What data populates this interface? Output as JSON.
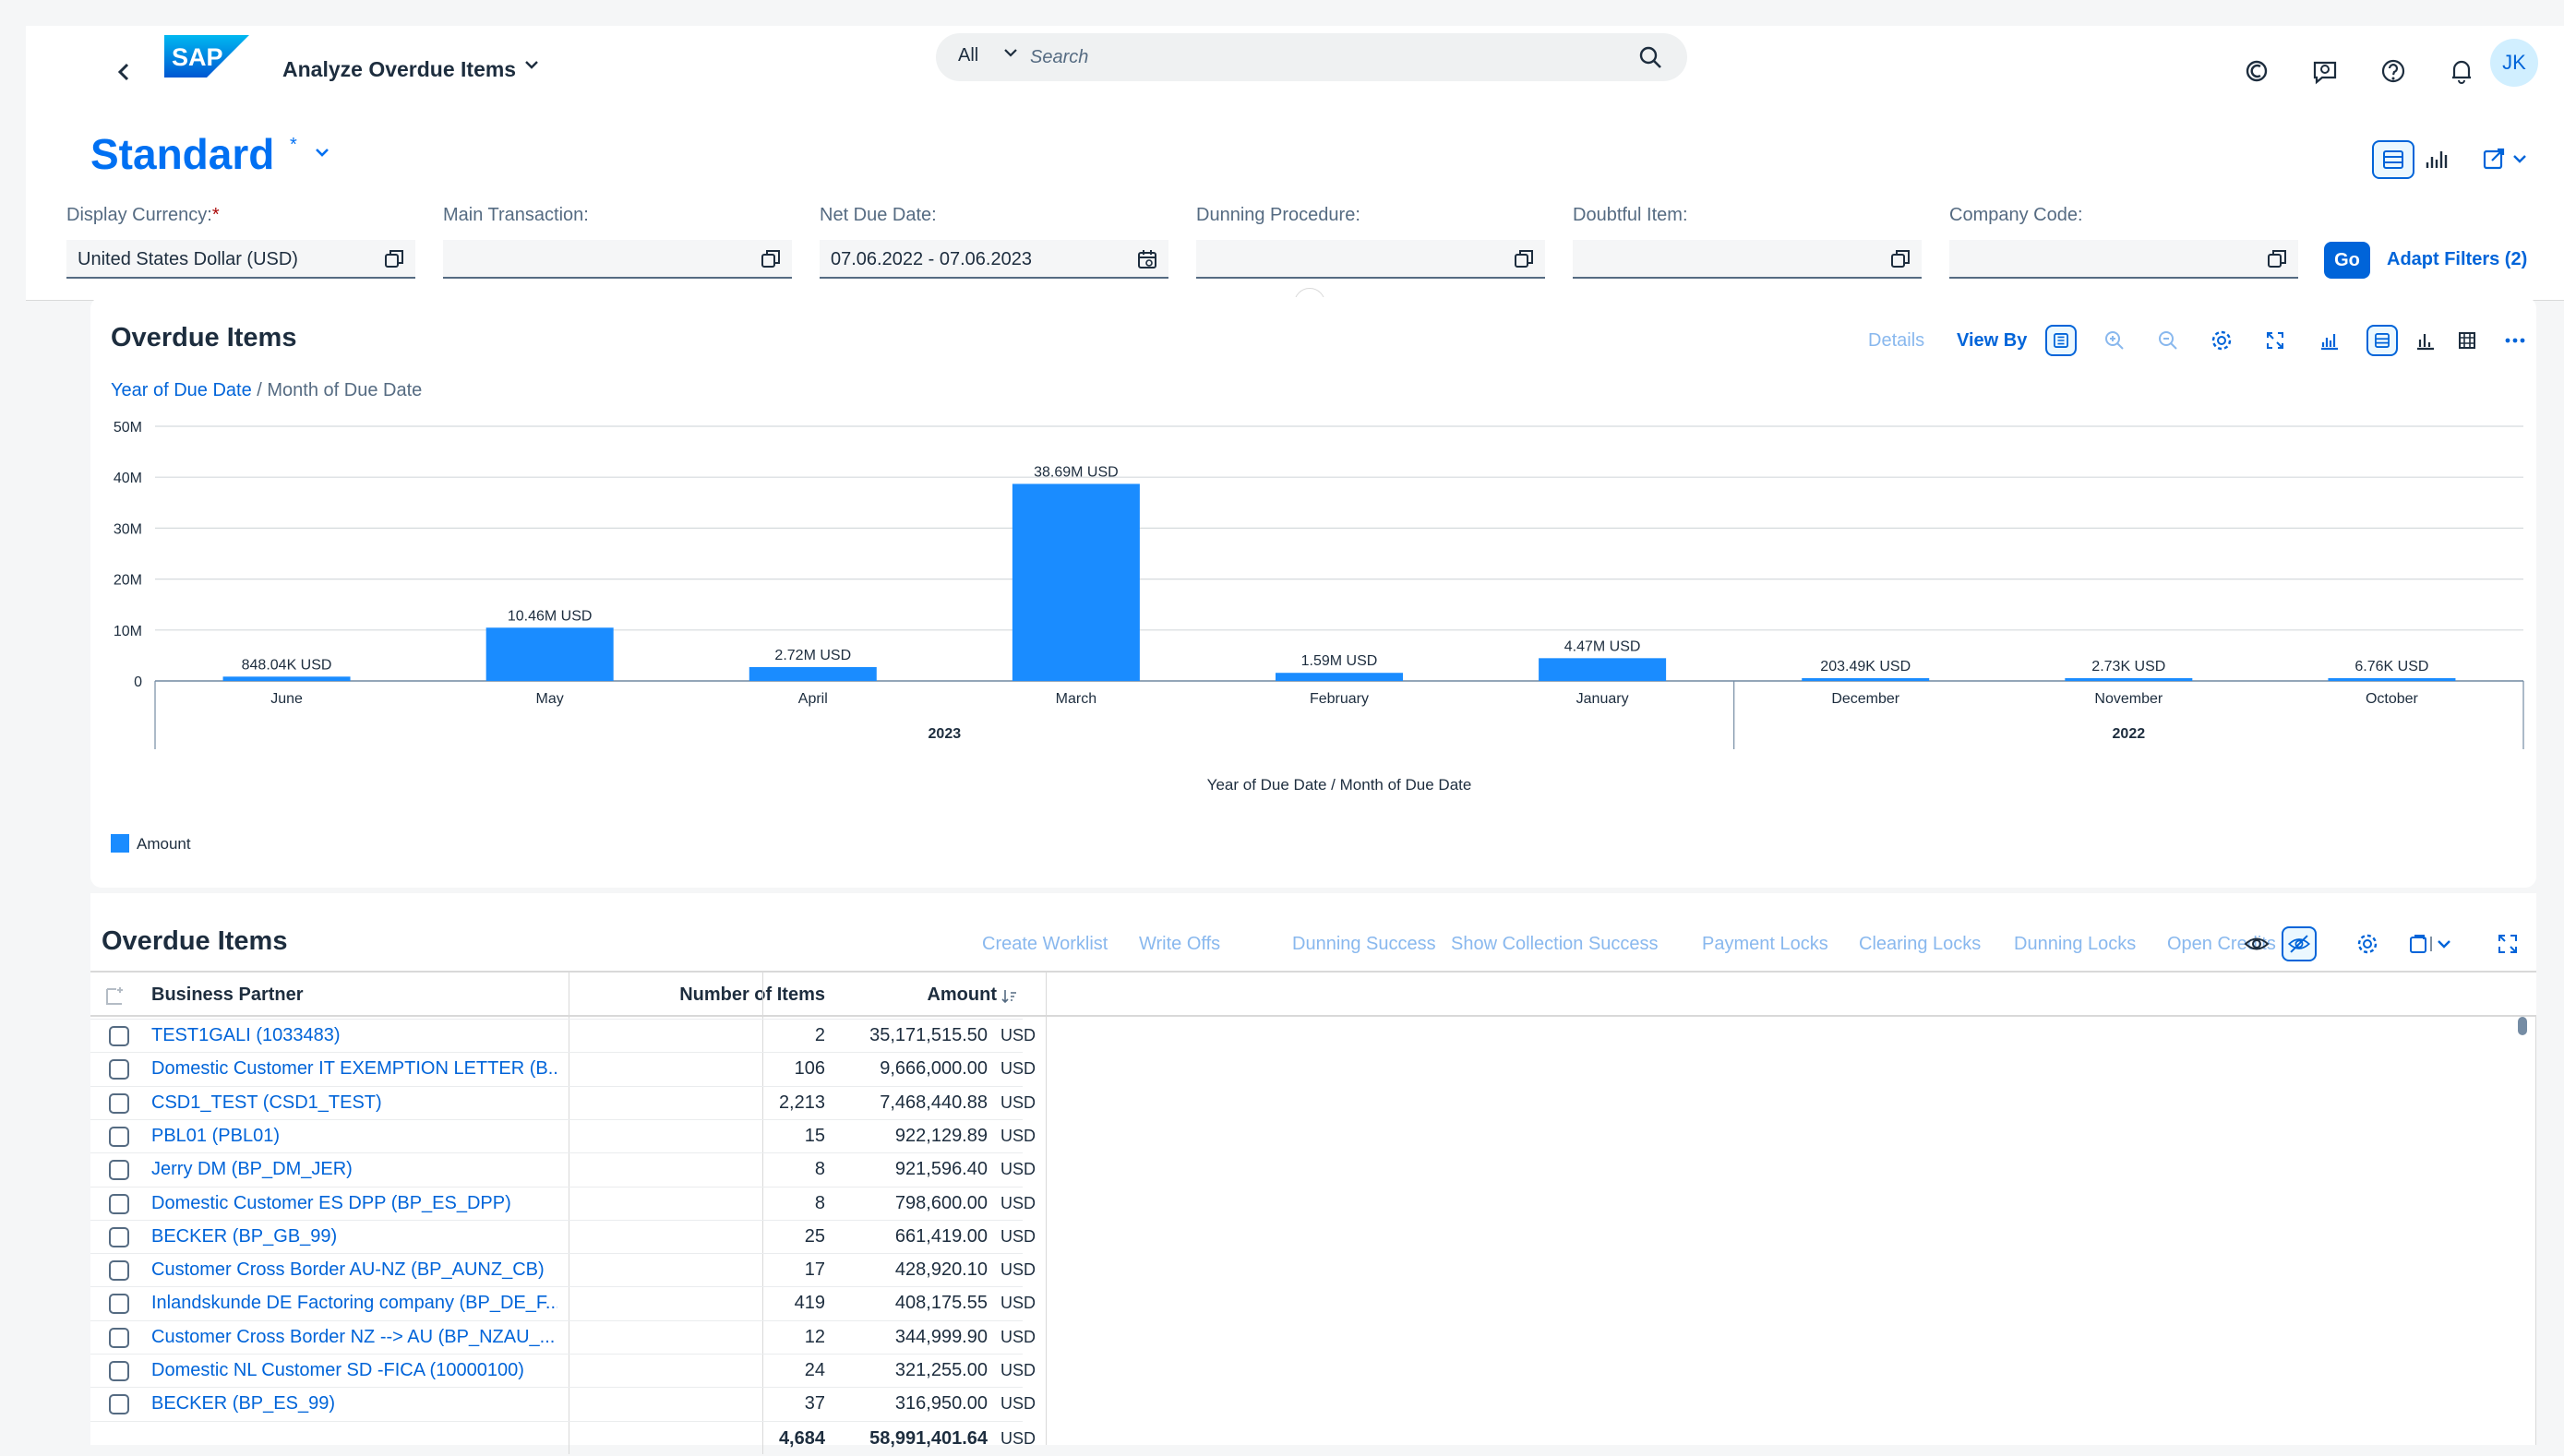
{
  "shell": {
    "app_title": "Analyze Overdue Items",
    "search_scope": "All",
    "search_placeholder": "Search",
    "avatar_initials": "JK"
  },
  "header": {
    "variant": "Standard",
    "variant_modified": "*"
  },
  "filters": [
    {
      "label": "Display Currency:",
      "required": "*",
      "value": "United States Dollar (USD)"
    },
    {
      "label": "Main Transaction:",
      "required": "",
      "value": ""
    },
    {
      "label": "Net Due Date:",
      "required": "",
      "value": "07.06.2022 - 07.06.2023"
    },
    {
      "label": "Dunning Procedure:",
      "required": "",
      "value": ""
    },
    {
      "label": "Doubtful Item:",
      "required": "",
      "value": ""
    },
    {
      "label": "Company Code:",
      "required": "",
      "value": ""
    }
  ],
  "filter_actions": {
    "go": "Go",
    "adapt": "Adapt Filters (2)"
  },
  "chart_card": {
    "title": "Overdue Items",
    "breadcrumb_link": "Year of Due Date",
    "breadcrumb_sep": " / ",
    "breadcrumb_current": "Month of Due Date",
    "details": "Details",
    "view_by": "View By"
  },
  "chart_data": {
    "type": "bar",
    "categories": [
      "June",
      "May",
      "April",
      "March",
      "February",
      "January",
      "December",
      "November",
      "October"
    ],
    "groups": [
      {
        "label": "2023",
        "categories": [
          "June",
          "May",
          "April",
          "March",
          "February",
          "January"
        ]
      },
      {
        "label": "2022",
        "categories": [
          "December",
          "November",
          "October"
        ]
      }
    ],
    "series": [
      {
        "name": "Amount",
        "color": "#1a8cff",
        "values": [
          848040,
          10460000,
          2720000,
          38690000,
          1590000,
          4470000,
          203490,
          2730,
          6760
        ]
      }
    ],
    "data_labels": [
      "848.04K USD",
      "10.46M USD",
      "2.72M USD",
      "38.69M USD",
      "1.59M USD",
      "4.47M USD",
      "203.49K USD",
      "2.73K USD",
      "6.76K USD"
    ],
    "yticks": [
      "0",
      "10M",
      "20M",
      "30M",
      "40M",
      "50M"
    ],
    "ylim": [
      0,
      50000000
    ],
    "xlabel": "Year of Due Date / Month of Due Date",
    "ylabel": "",
    "grid": true,
    "legend": "bottom-left"
  },
  "table": {
    "title": "Overdue Items",
    "actions": [
      "Create Worklist",
      "Write Offs",
      "Dunning Success",
      "Show Collection Success",
      "Payment Locks",
      "Clearing Locks",
      "Dunning Locks",
      "Open Credits"
    ],
    "columns": {
      "bp": "Business Partner",
      "items": "Number of Items",
      "amount": "Amount"
    },
    "rows": [
      {
        "bp": "TEST1GALI (1033483)",
        "items": "2",
        "amount": "35,171,515.50",
        "cur": "USD"
      },
      {
        "bp": "Domestic Customer IT EXEMPTION LETTER (B...",
        "items": "106",
        "amount": "9,666,000.00",
        "cur": "USD"
      },
      {
        "bp": "CSD1_TEST (CSD1_TEST)",
        "items": "2,213",
        "amount": "7,468,440.88",
        "cur": "USD"
      },
      {
        "bp": "PBL01 (PBL01)",
        "items": "15",
        "amount": "922,129.89",
        "cur": "USD"
      },
      {
        "bp": "Jerry DM (BP_DM_JER)",
        "items": "8",
        "amount": "921,596.40",
        "cur": "USD"
      },
      {
        "bp": "Domestic Customer ES DPP (BP_ES_DPP)",
        "items": "8",
        "amount": "798,600.00",
        "cur": "USD"
      },
      {
        "bp": "BECKER (BP_GB_99)",
        "items": "25",
        "amount": "661,419.00",
        "cur": "USD"
      },
      {
        "bp": "Customer Cross Border AU-NZ (BP_AUNZ_CB)",
        "items": "17",
        "amount": "428,920.10",
        "cur": "USD"
      },
      {
        "bp": "Inlandskunde DE Factoring company (BP_DE_F...",
        "items": "419",
        "amount": "408,175.55",
        "cur": "USD"
      },
      {
        "bp": "Customer Cross Border NZ --> AU (BP_NZAU_...",
        "items": "12",
        "amount": "344,999.90",
        "cur": "USD"
      },
      {
        "bp": "Domestic NL Customer SD -FICA (10000100)",
        "items": "24",
        "amount": "321,255.00",
        "cur": "USD"
      },
      {
        "bp": "BECKER (BP_ES_99)",
        "items": "37",
        "amount": "316,950.00",
        "cur": "USD"
      }
    ],
    "totals": {
      "items": "4,684",
      "amount": "58,991,401.64",
      "cur": "USD"
    }
  }
}
